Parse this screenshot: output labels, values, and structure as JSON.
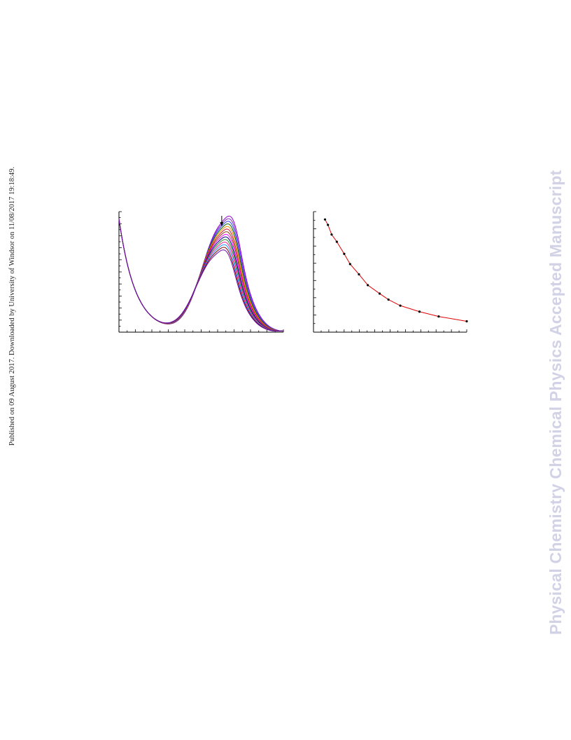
{
  "page": {
    "side_note": "Published on 09 August 2017. Downloaded by University of Windsor on 11/08/2017 19:18:49.",
    "watermark": "Physical Chemistry Chemical Physics Accepted Manuscript"
  },
  "colors": {
    "axis": "#000000",
    "fit_line": "#e00000",
    "points": "#000000",
    "watermark": "#d2d2e6",
    "spectra": [
      "#9400d3",
      "#7b2fbe",
      "#3a3aff",
      "#006400",
      "#ff8c00",
      "#dc143c",
      "#8b4513",
      "#ff00ff",
      "#00008b",
      "#228b22",
      "#ff1493",
      "#1e90ff",
      "#800000",
      "#6a0dad"
    ]
  },
  "chart_data": [
    {
      "type": "line",
      "title": "",
      "xlabel": "",
      "ylabel": "",
      "xlim": [
        0,
        100
      ],
      "ylim": [
        0,
        1.0
      ],
      "arrow": "downward arrow marking the band maximum",
      "curve_params": {
        "band_center": 62.5,
        "band_max_top": 0.875,
        "band_max_bottom": 0.62,
        "start_value": 0.96,
        "valley_value": 0.24
      },
      "series_count": 14
    },
    {
      "type": "scatter",
      "title": "",
      "xlabel": "",
      "ylabel": "",
      "xlim": [
        0,
        100
      ],
      "ylim": [
        0,
        1.0
      ],
      "fit": "smooth decaying curve",
      "points": [
        [
          4,
          0.935
        ],
        [
          6,
          0.89
        ],
        [
          8.5,
          0.81
        ],
        [
          12,
          0.75
        ],
        [
          17,
          0.65
        ],
        [
          21,
          0.565
        ],
        [
          27,
          0.48
        ],
        [
          33,
          0.39
        ],
        [
          41,
          0.32
        ],
        [
          47,
          0.27
        ],
        [
          55,
          0.22
        ],
        [
          68,
          0.17
        ],
        [
          81,
          0.13
        ],
        [
          100,
          0.09
        ]
      ]
    }
  ]
}
